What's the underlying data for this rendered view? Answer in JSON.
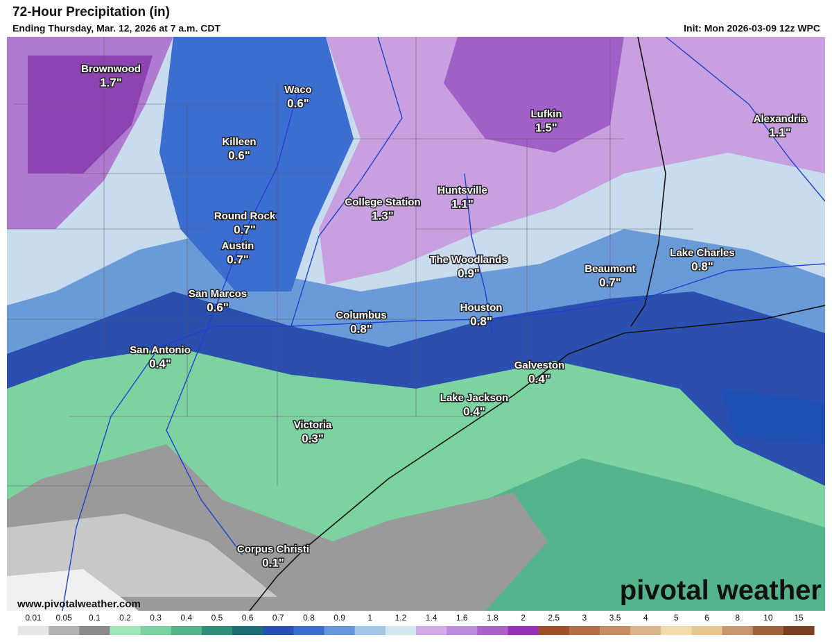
{
  "header": {
    "title": "72-Hour Precipitation (in)",
    "subtitle": "Ending Thursday, Mar. 12, 2026 at 7 a.m. CDT",
    "init": "Init: Mon 2026-03-09 12z WPC"
  },
  "cities": [
    {
      "name": "Brownwood",
      "value": "1.7\""
    },
    {
      "name": "Waco",
      "value": "0.6\""
    },
    {
      "name": "Killeen",
      "value": "0.6\""
    },
    {
      "name": "Lufkin",
      "value": "1.5\""
    },
    {
      "name": "Alexandria",
      "value": "1.1\""
    },
    {
      "name": "College Station",
      "value": "1.3\""
    },
    {
      "name": "Huntsville",
      "value": "1.1\""
    },
    {
      "name": "Round Rock",
      "value": "0.7\""
    },
    {
      "name": "Austin",
      "value": "0.7\""
    },
    {
      "name": "The Woodlands",
      "value": "0.9\""
    },
    {
      "name": "Beaumont",
      "value": "0.7\""
    },
    {
      "name": "Lake Charles",
      "value": "0.8\""
    },
    {
      "name": "San Marcos",
      "value": "0.6\""
    },
    {
      "name": "Columbus",
      "value": "0.8\""
    },
    {
      "name": "Houston",
      "value": "0.8\""
    },
    {
      "name": "San Antonio",
      "value": "0.4\""
    },
    {
      "name": "Galveston",
      "value": "0.4\""
    },
    {
      "name": "Lake Jackson",
      "value": "0.4\""
    },
    {
      "name": "Victoria",
      "value": "0.3\""
    },
    {
      "name": "Corpus Christi",
      "value": "0.1\""
    }
  ],
  "footer": {
    "url": "www.pivotalweather.com",
    "brand": "pivotal weather"
  },
  "legend": [
    {
      "label": "0.01",
      "color": "#e6e6e6"
    },
    {
      "label": "0.05",
      "color": "#b4b4b4"
    },
    {
      "label": "0.1",
      "color": "#8c8c8c"
    },
    {
      "label": "0.2",
      "color": "#9ee6b4"
    },
    {
      "label": "0.3",
      "color": "#7cd2a0"
    },
    {
      "label": "0.4",
      "color": "#56b48c"
    },
    {
      "label": "0.5",
      "color": "#2e8c78"
    },
    {
      "label": "0.6",
      "color": "#1e6e78"
    },
    {
      "label": "0.7",
      "color": "#2850b4"
    },
    {
      "label": "0.8",
      "color": "#3c6ed2"
    },
    {
      "label": "0.9",
      "color": "#6496dc"
    },
    {
      "label": "1",
      "color": "#a0c8e6"
    },
    {
      "label": "1.2",
      "color": "#d2e6f0"
    },
    {
      "label": "1.4",
      "color": "#d2aae6"
    },
    {
      "label": "1.6",
      "color": "#be8cdc"
    },
    {
      "label": "1.8",
      "color": "#aa64c8"
    },
    {
      "label": "2",
      "color": "#9632b4"
    },
    {
      "label": "2.5",
      "color": "#a05028"
    },
    {
      "label": "3",
      "color": "#b46e46"
    },
    {
      "label": "3.5",
      "color": "#c88c64"
    },
    {
      "label": "4",
      "color": "#dcb48c"
    },
    {
      "label": "5",
      "color": "#f0dcaa"
    },
    {
      "label": "6",
      "color": "#e6c88c"
    },
    {
      "label": "8",
      "color": "#c8966e"
    },
    {
      "label": "10",
      "color": "#a0643c"
    },
    {
      "label": "15",
      "color": "#7a4020"
    }
  ]
}
